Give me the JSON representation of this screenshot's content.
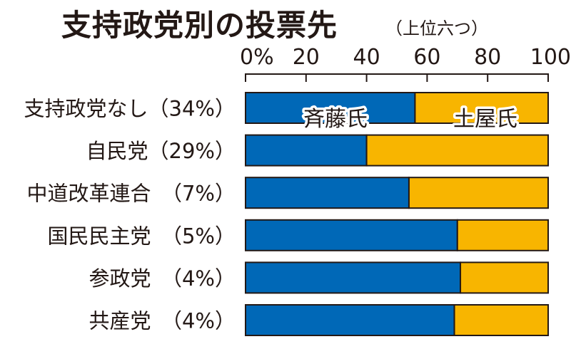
{
  "chart_data": {
    "type": "bar",
    "orientation": "horizontal-stacked-100",
    "title": "支持政党別の投票先",
    "subtitle": "（上位六つ）",
    "categories": [
      "支持政党なし（34%）",
      "自民党（29%）",
      "中道改革連合　（7%）",
      "国民民主党　（5%）",
      "参政党　（4%）",
      "共産党　（4%）"
    ],
    "series": [
      {
        "name": "斉藤氏",
        "color": "#0068b7",
        "values": [
          56,
          40,
          54,
          70,
          71,
          69
        ]
      },
      {
        "name": "土屋氏",
        "color": "#f8b500",
        "values": [
          44,
          60,
          46,
          30,
          29,
          31
        ]
      }
    ],
    "xticks": [
      "0%",
      "20",
      "40",
      "60",
      "80",
      "100"
    ],
    "xtick_values": [
      0,
      20,
      40,
      60,
      80,
      100
    ],
    "xlim": [
      0,
      100
    ],
    "grid": false,
    "legend": "labels inside first bar"
  }
}
